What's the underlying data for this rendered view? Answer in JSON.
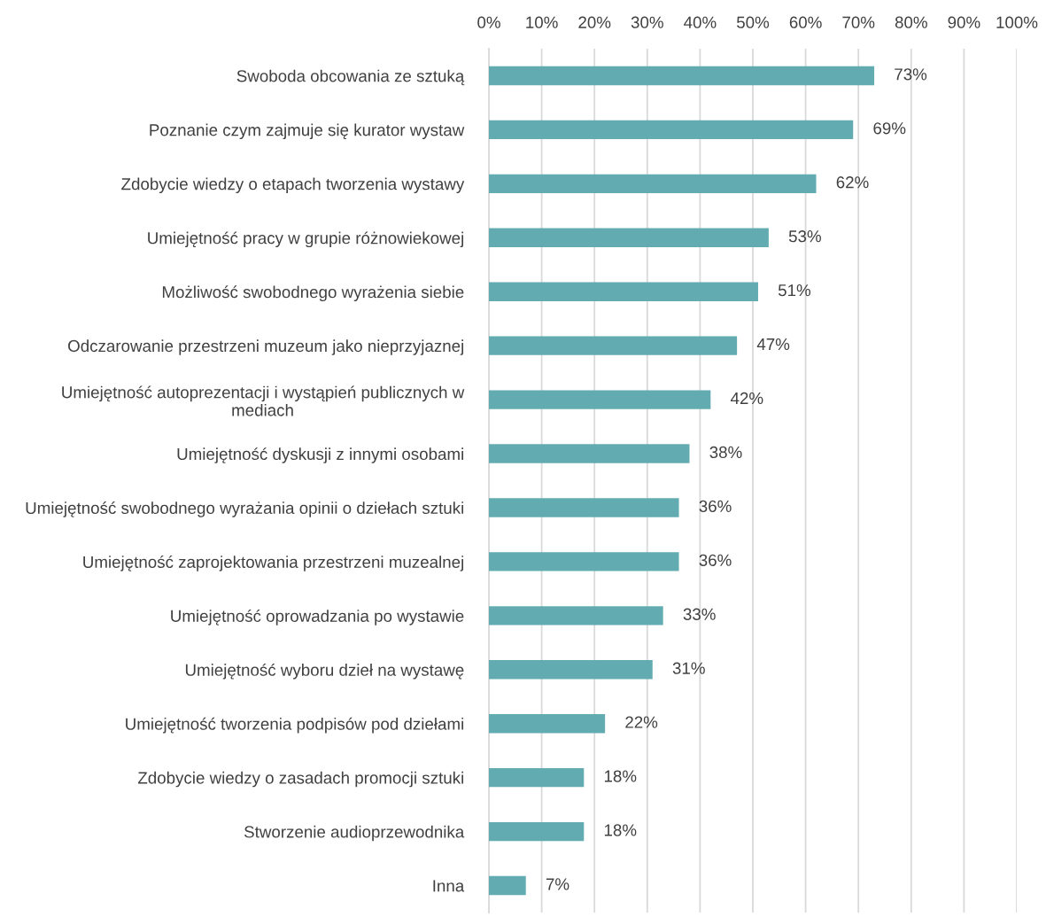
{
  "chart_data": {
    "type": "bar",
    "orientation": "horizontal",
    "categories": [
      "Swoboda obcowania ze sztuką",
      "Poznanie czym zajmuje się kurator wystaw",
      "Zdobycie wiedzy o etapach tworzenia wystawy",
      "Umiejętność pracy w grupie różnowiekowej",
      "Możliwość swobodnego wyrażenia siebie",
      "Odczarowanie przestrzeni muzeum jako nieprzyjaznej",
      "Umiejętność autoprezentacji i wystąpień publicznych w\nmediach",
      "Umiejętność dyskusji z innymi osobami",
      "Umiejętność swobodnego wyrażania opinii o dziełach sztuki",
      "Umiejętność zaprojektowania przestrzeni muzealnej",
      "Umiejętność oprowadzania po wystawie",
      "Umiejętność wyboru dzieł na wystawę",
      "Umiejętność tworzenia podpisów pod dziełami",
      "Zdobycie wiedzy o zasadach promocji sztuki",
      "Stworzenie audioprzewodnika",
      "Inna"
    ],
    "values": [
      73,
      69,
      62,
      53,
      51,
      47,
      42,
      38,
      36,
      36,
      33,
      31,
      22,
      18,
      18,
      7
    ],
    "value_labels": [
      "73%",
      "69%",
      "62%",
      "53%",
      "51%",
      "47%",
      "42%",
      "38%",
      "36%",
      "36%",
      "33%",
      "31%",
      "22%",
      "18%",
      "18%",
      "7%"
    ],
    "color": "#62acb1",
    "xlim": [
      0,
      100
    ],
    "xticks": [
      {
        "value": 0,
        "label": "0%"
      },
      {
        "value": 10,
        "label": "10%"
      },
      {
        "value": 20,
        "label": "20%"
      },
      {
        "value": 30,
        "label": "30%"
      },
      {
        "value": 40,
        "label": "40%"
      },
      {
        "value": 50,
        "label": "50%"
      },
      {
        "value": 60,
        "label": "60%"
      },
      {
        "value": 70,
        "label": "70%"
      },
      {
        "value": 80,
        "label": "80%"
      },
      {
        "value": 90,
        "label": "90%"
      },
      {
        "value": 100,
        "label": "100%"
      }
    ],
    "grid": "x",
    "legend": false
  }
}
